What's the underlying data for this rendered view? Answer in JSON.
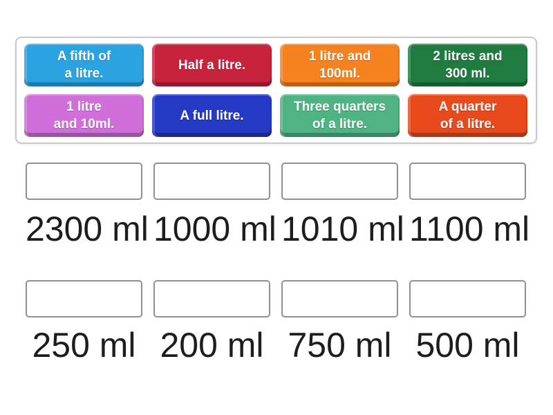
{
  "activity": {
    "type": "match-up",
    "tray": {
      "tiles": [
        {
          "id": "a-fifth-of-a-litre",
          "label": "A fifth of\na litre.",
          "color": "#2aa3e0"
        },
        {
          "id": "half-a-litre",
          "label": "Half a litre.",
          "color": "#c7233c"
        },
        {
          "id": "1-litre-and-100ml",
          "label": "1 litre and\n100ml.",
          "color": "#f6821f"
        },
        {
          "id": "2-litres-and-300ml",
          "label": "2 litres and\n300 ml.",
          "color": "#1f7b40"
        },
        {
          "id": "1-litre-and-10ml",
          "label": "1 litre\nand 10ml.",
          "color": "#d06fd9"
        },
        {
          "id": "a-full-litre",
          "label": "A full litre.",
          "color": "#2439c4"
        },
        {
          "id": "three-quarters-of-a-litre",
          "label": "Three quarters\nof a litre.",
          "color": "#4fb383"
        },
        {
          "id": "a-quarter-of-a-litre",
          "label": "A quarter\nof a litre.",
          "color": "#e84a1c"
        }
      ]
    },
    "answers": {
      "row1": [
        "2300 ml",
        "1000 ml",
        "1010 ml",
        "1100 ml"
      ],
      "row2": [
        "250 ml",
        "200 ml",
        "750 ml",
        "500 ml"
      ]
    },
    "colors": {
      "tray_border": "#c9c9c9",
      "slot_border": "#909090",
      "answer_text": "#1d1d1d",
      "tile_text": "#ffffff"
    }
  }
}
